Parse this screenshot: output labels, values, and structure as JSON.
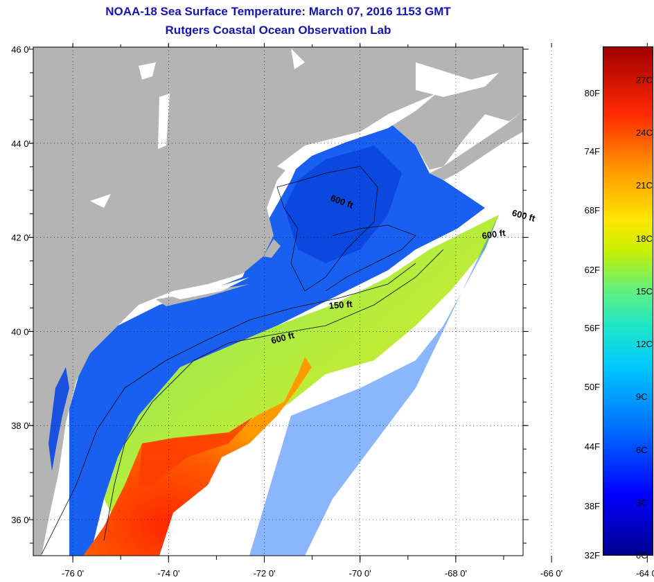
{
  "title": "NOAA-18 Sea Surface Temperature:  March 07, 2016 1153 GMT",
  "subtitle": "Rutgers Coastal Ocean Observation Lab",
  "map": {
    "lon_range": [
      -77,
      -63
    ],
    "lat_range": [
      35,
      46
    ],
    "lon_ticks": [
      {
        "value": -76,
        "label": "-76 0'"
      },
      {
        "value": -74,
        "label": "-74 0'"
      },
      {
        "value": -72,
        "label": "-72 0'"
      },
      {
        "value": -70,
        "label": "-70 0'"
      },
      {
        "value": -68,
        "label": "-68 0'"
      },
      {
        "value": -66,
        "label": "-66 0'"
      },
      {
        "value": -64,
        "label": "-64 0'"
      }
    ],
    "lat_ticks": [
      {
        "value": 46,
        "label": "46 0'"
      },
      {
        "value": 44,
        "label": "44 0'"
      },
      {
        "value": 42,
        "label": "42 0'"
      },
      {
        "value": 40,
        "label": "40 0'"
      },
      {
        "value": 38,
        "label": "38 0'"
      },
      {
        "value": 36,
        "label": "36 0'"
      }
    ],
    "contour_labels": [
      {
        "text": "600 ft",
        "lon": -70.4,
        "lat": 42.7
      },
      {
        "text": "600 ft",
        "lon": -66.6,
        "lat": 42.4
      },
      {
        "text": "600 ft",
        "lon": -67.2,
        "lat": 42.0
      },
      {
        "text": "150 ft",
        "lon": -70.4,
        "lat": 40.5
      },
      {
        "text": "600 ft",
        "lon": -71.6,
        "lat": 39.8
      }
    ],
    "land_color": "#b4b4b4",
    "cloud_color": "#ffffff"
  },
  "colorbar": {
    "fahrenheit": [
      {
        "label": "80F",
        "level": 0.907
      },
      {
        "label": "74F",
        "level": 0.793
      },
      {
        "label": "68F",
        "level": 0.678
      },
      {
        "label": "62F",
        "level": 0.561
      },
      {
        "label": "56F",
        "level": 0.446
      },
      {
        "label": "50F",
        "level": 0.331
      },
      {
        "label": "44F",
        "level": 0.214
      },
      {
        "label": "38F",
        "level": 0.097
      },
      {
        "label": "32F",
        "level": 0.0
      }
    ],
    "celsius": [
      {
        "label": "27C",
        "level": 0.933
      },
      {
        "label": "24C",
        "level": 0.83
      },
      {
        "label": "21C",
        "level": 0.726
      },
      {
        "label": "18C",
        "level": 0.622
      },
      {
        "label": "15C",
        "level": 0.518
      },
      {
        "label": "12C",
        "level": 0.415
      },
      {
        "label": "9C",
        "level": 0.311
      },
      {
        "label": "6C",
        "level": 0.207
      },
      {
        "label": "3C",
        "level": 0.103
      },
      {
        "label": "0C",
        "level": 0.0
      }
    ]
  }
}
